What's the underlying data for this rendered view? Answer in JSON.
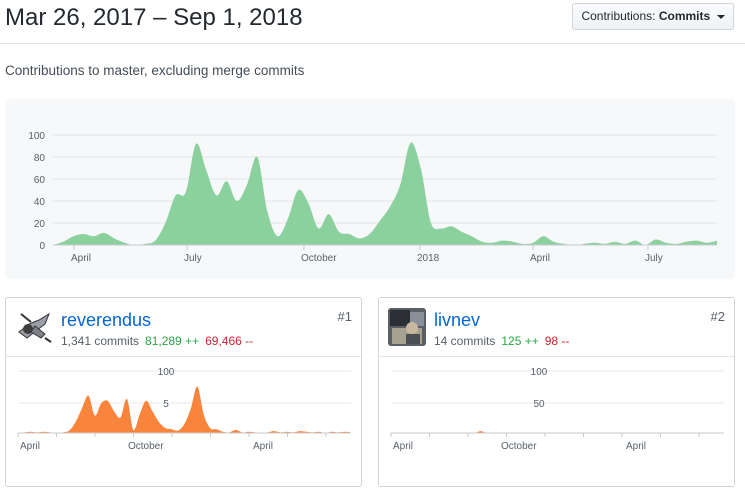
{
  "header": {
    "date_range": "Mar 26, 2017 – Sep 1, 2018",
    "select_prefix": "Contributions:",
    "select_value": "Commits"
  },
  "subtitle": "Contributions to master, excluding merge commits",
  "chart_data": [
    {
      "type": "area",
      "series": [
        {
          "values": [
            0,
            3,
            8,
            10,
            8,
            11,
            6,
            2,
            0,
            1,
            4,
            20,
            45,
            48,
            92,
            68,
            45,
            58,
            40,
            55,
            80,
            30,
            8,
            24,
            50,
            38,
            15,
            28,
            12,
            10,
            6,
            10,
            22,
            35,
            55,
            93,
            70,
            20,
            15,
            17,
            12,
            8,
            3,
            2,
            4,
            3,
            1,
            2,
            8,
            3,
            1,
            0,
            1,
            2,
            1,
            3,
            1,
            4,
            0,
            5,
            2,
            1,
            3,
            4,
            2,
            4
          ]
        }
      ],
      "x_ticks": [
        "April",
        "July",
        "October",
        "2018",
        "April",
        "July"
      ],
      "y_ticks": [
        0,
        20,
        40,
        60,
        80,
        100
      ],
      "ylim": [
        0,
        100
      ],
      "color": "#8bd19e",
      "grid": true
    },
    {
      "type": "area",
      "series": [
        {
          "values": [
            0,
            1,
            2,
            1,
            2,
            1,
            0,
            1,
            4,
            18,
            40,
            60,
            28,
            48,
            52,
            35,
            25,
            55,
            5,
            30,
            52,
            35,
            18,
            8,
            6,
            4,
            15,
            40,
            75,
            30,
            8,
            6,
            2,
            1,
            5,
            1,
            2,
            1,
            0,
            1,
            3,
            1,
            2,
            1,
            3,
            2,
            1,
            2,
            0,
            2,
            1,
            2,
            1
          ]
        }
      ],
      "x_ticks": [
        "April",
        "October",
        "April"
      ],
      "y_ticks": [
        "100",
        "5"
      ],
      "color": "#f9853c",
      "grid": true
    },
    {
      "type": "area",
      "series": [
        {
          "values": [
            0,
            0,
            0,
            0,
            0,
            0,
            0,
            0,
            0,
            0,
            0,
            0,
            0,
            0,
            3,
            0,
            0,
            0,
            0,
            0,
            0,
            0,
            0,
            0,
            0,
            0,
            0,
            0,
            0,
            0,
            0,
            0,
            0,
            0,
            0,
            0,
            0,
            0,
            0,
            0,
            0,
            0,
            0,
            0,
            0,
            0,
            0,
            0,
            0,
            0,
            0,
            0,
            0
          ]
        }
      ],
      "x_ticks": [
        "April",
        "October",
        "April"
      ],
      "y_ticks": [
        "100",
        "50"
      ],
      "color": "#f9853c",
      "grid": true
    }
  ],
  "contributors": [
    {
      "username": "reverendus",
      "commits": "1,341 commits",
      "additions": "81,289 ++",
      "deletions": "69,466 --",
      "rank": "#1",
      "avatar_icon": "bird-ninja-avatar-icon"
    },
    {
      "username": "livnev",
      "commits": "14 commits",
      "additions": "125 ++",
      "deletions": "98 --",
      "rank": "#2",
      "avatar_icon": "photo-avatar-icon"
    }
  ]
}
